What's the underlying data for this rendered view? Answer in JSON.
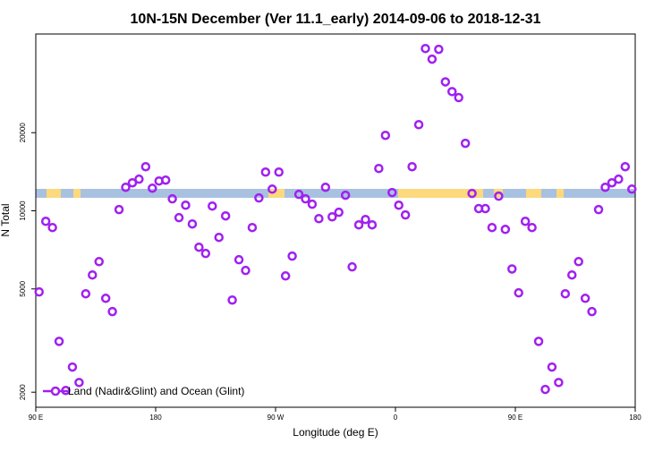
{
  "chart_data": {
    "type": "scatter",
    "title": "10N-15N December (Ver 11.1_early)   2014-09-06 to 2018-12-31",
    "x_label": "Longitude (deg E)",
    "y_label": "N Total",
    "log_y": true,
    "grid": false,
    "legend": "lower left",
    "xlim": [
      90,
      540
    ],
    "xticks": [
      {
        "value": 90,
        "label": "90 E"
      },
      180,
      {
        "value": 270,
        "label": "90 W"
      },
      {
        "value": 360,
        "label": "0"
      },
      {
        "value": 450,
        "label": "90 E"
      },
      {
        "value": 540,
        "label": "180"
      }
    ],
    "ylim": [
      1750,
      48000
    ],
    "yticks": [
      2000,
      5000,
      10000,
      20000
    ],
    "x": [
      92.5,
      97.5,
      102.5,
      107.5,
      112.5,
      117.5,
      122.5,
      127.5,
      132.5,
      137.5,
      142.5,
      147.5,
      152.5,
      157.5,
      162.5,
      167.5,
      172.5,
      177.5,
      182.5,
      187.5,
      192.5,
      197.5,
      202.5,
      207.5,
      212.5,
      217.5,
      222.5,
      227.5,
      232.5,
      237.5,
      242.5,
      247.5,
      252.5,
      257.5,
      262.5,
      267.5,
      272.5,
      277.5,
      282.5,
      287.5,
      292.5,
      297.5,
      302.5,
      307.5,
      312.5,
      317.5,
      322.5,
      327.5,
      332.5,
      337.5,
      342.5,
      347.5,
      352.5,
      357.5,
      362.5,
      367.5,
      372.5,
      377.5,
      382.5,
      387.5,
      392.5,
      397.5,
      402.5,
      407.5,
      412.5,
      417.5,
      422.5,
      427.5,
      432.5,
      437.5,
      442.5,
      447.5,
      452.5,
      457.5,
      462.5,
      467.5,
      472.5,
      477.5,
      482.5,
      487.5,
      492.5,
      497.5,
      502.5,
      507.5,
      512.5,
      517.5,
      522.5,
      527.5,
      532.5,
      537.5
    ],
    "series": [
      {
        "name": "Land (Nadir&Glint) and Ocean (Glint)",
        "color": "#a020f0",
        "values": [
          4870,
          9110,
          8620,
          3140,
          2030,
          2500,
          2180,
          4790,
          5660,
          6370,
          4600,
          4090,
          10110,
          12320,
          12820,
          13240,
          14790,
          12220,
          13030,
          13130,
          11120,
          9410,
          10510,
          8900,
          7240,
          6850,
          10430,
          7900,
          9560,
          4530,
          6480,
          5890,
          8620,
          11210,
          14100,
          12120,
          14100,
          5610,
          6690,
          11570,
          11120,
          10600,
          9330,
          12320,
          9480,
          9870,
          11480,
          6080,
          8830,
          9260,
          8830,
          14560,
          19530,
          11760,
          10510,
          9640,
          14790,
          21480,
          42200,
          38400,
          41900,
          31400,
          28800,
          27300,
          18200,
          11670,
          10200,
          10200,
          8620,
          11390,
          8480,
          5970,
          4830,
          9110,
          8620,
          3140,
          2050,
          2500,
          2180,
          4790,
          5660,
          6370,
          4600,
          4090,
          10110,
          12320,
          12820,
          13240,
          14790,
          12120
        ]
      }
    ]
  }
}
